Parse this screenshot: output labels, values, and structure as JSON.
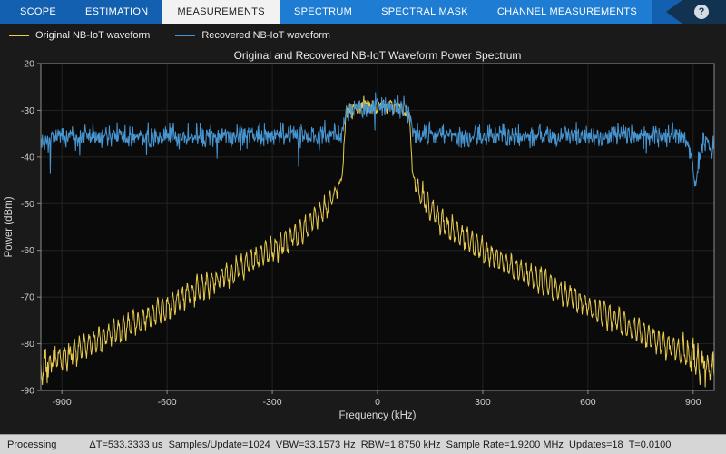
{
  "toolbar": {
    "tabs": [
      {
        "label": "SCOPE",
        "active": false
      },
      {
        "label": "ESTIMATION",
        "active": false
      },
      {
        "label": "MEASUREMENTS",
        "active": true
      },
      {
        "label": "SPECTRUM",
        "active": false,
        "group": "contextual"
      },
      {
        "label": "SPECTRAL MASK",
        "active": false,
        "group": "contextual"
      },
      {
        "label": "CHANNEL MEASUREMENTS",
        "active": false,
        "group": "contextual"
      }
    ],
    "help_label": "?"
  },
  "legend": {
    "items": [
      {
        "label": "Original NB-IoT waveform"
      },
      {
        "label": "Recovered NB-IoT waveform"
      }
    ]
  },
  "colors": {
    "toolbar": "#1460B0",
    "toolbar_contextual": "#1E7DD2",
    "active_tab_bg": "#F2F2F2",
    "figure_bg": "#1A1A1A",
    "axes_bg": "#0A0A0A",
    "status_bar_bg": "#D6D6D6",
    "axis_box": "#8C8C8C",
    "tick_text": "#CFCFCF"
  },
  "chart_data": {
    "type": "line",
    "title": "Original and Recovered NB-IoT Waveform Power Spectrum",
    "xlabel": "Frequency (kHz)",
    "ylabel": "Power (dBm)",
    "xlim": [
      -960,
      960
    ],
    "ylim": [
      -90,
      -20
    ],
    "xticks": [
      -900,
      -600,
      -300,
      0,
      300,
      600,
      900
    ],
    "yticks": [
      -20,
      -30,
      -40,
      -50,
      -60,
      -70,
      -80,
      -90
    ],
    "grid": false,
    "legend_position": "top-left",
    "series": [
      {
        "name": "Original NB-IoT waveform",
        "color": "#E9CC4F",
        "shape": "sinc-like NB-IoT spectrum: in-band plateau ~-29 dBm over +/-90 kHz, rippled sidelobe skirt decaying to ~-85 dBm at the band edges",
        "envelope": [
          [
            -960,
            -85.5
          ],
          [
            -900,
            -83
          ],
          [
            -750,
            -77.5
          ],
          [
            -600,
            -72
          ],
          [
            -450,
            -66
          ],
          [
            -300,
            -60
          ],
          [
            -200,
            -55
          ],
          [
            -150,
            -51
          ],
          [
            -110,
            -46.5
          ],
          [
            -100,
            -44
          ],
          [
            -95,
            -37
          ],
          [
            -90,
            -30.5
          ],
          [
            -60,
            -29.5
          ],
          [
            0,
            -29
          ],
          [
            60,
            -29.5
          ],
          [
            90,
            -30.5
          ],
          [
            95,
            -37
          ],
          [
            100,
            -44
          ],
          [
            110,
            -46.5
          ],
          [
            150,
            -51
          ],
          [
            200,
            -55
          ],
          [
            300,
            -60
          ],
          [
            450,
            -66
          ],
          [
            600,
            -72
          ],
          [
            750,
            -77.5
          ],
          [
            900,
            -83
          ],
          [
            960,
            -85.5
          ]
        ],
        "ripple_db": 2.2,
        "ripple_period_khz": 14,
        "noise_db": 0.6
      },
      {
        "name": "Recovered NB-IoT waveform",
        "color": "#4795D1",
        "shape": "flat noise floor ~-35.5 dBm across the full span, in-band plateau ~-29 dBm over +/-90 kHz, notch down to ~-47 dBm near +905 kHz",
        "envelope": [
          [
            -960,
            -37
          ],
          [
            -905,
            -35.5
          ],
          [
            -300,
            -35.5
          ],
          [
            -100,
            -35
          ],
          [
            -95,
            -32
          ],
          [
            -90,
            -30
          ],
          [
            -60,
            -29.5
          ],
          [
            0,
            -29
          ],
          [
            60,
            -29.5
          ],
          [
            90,
            -30
          ],
          [
            95,
            -32
          ],
          [
            100,
            -35
          ],
          [
            300,
            -35.5
          ],
          [
            860,
            -35.5
          ],
          [
            880,
            -36
          ],
          [
            895,
            -40
          ],
          [
            905,
            -47
          ],
          [
            915,
            -41
          ],
          [
            925,
            -37.5
          ],
          [
            960,
            -37.5
          ]
        ],
        "ripple_db": 0,
        "ripple_period_khz": 0,
        "noise_db": 1.2
      }
    ]
  },
  "status_bar": {
    "state": "Processing",
    "info": "ΔT=533.3333 us  Samples/Update=1024  VBW=33.1573 Hz  RBW=1.8750 kHz  Sample Rate=1.9200 MHz  Updates=18  T=0.0100"
  }
}
